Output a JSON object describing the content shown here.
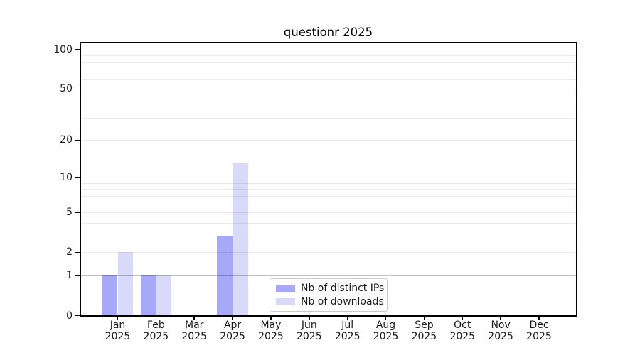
{
  "title": "questionr 2025",
  "chart_data": {
    "type": "bar",
    "title": "questionr 2025",
    "categories": [
      "Jan",
      "Feb",
      "Mar",
      "Apr",
      "May",
      "Jun",
      "Jul",
      "Aug",
      "Sep",
      "Oct",
      "Nov",
      "Dec"
    ],
    "x_year_label": "2025",
    "series": [
      {
        "name": "Nb of distinct IPs",
        "color": "#a8a8f8",
        "values": [
          1,
          1,
          0,
          3,
          0,
          0,
          0,
          0,
          0,
          0,
          0,
          0
        ]
      },
      {
        "name": "Nb of downloads",
        "color": "#d9d9fa",
        "values": [
          2,
          1,
          0,
          13,
          0,
          0,
          0,
          0,
          0,
          0,
          0,
          0
        ]
      }
    ],
    "y_axis": {
      "scale": "log1p",
      "tick_values": [
        0,
        1,
        2,
        5,
        10,
        20,
        50,
        100
      ],
      "major_gridlines": [
        1,
        10,
        100
      ],
      "minor_gridlines": [
        2,
        3,
        4,
        5,
        6,
        7,
        8,
        9,
        20,
        30,
        40,
        50,
        60,
        70,
        80,
        90
      ],
      "ylim": [
        0,
        113
      ]
    },
    "grid": true,
    "legend_position": "inside-bottom-left-of-center",
    "colors": {
      "major_grid": "#c2c2c2",
      "minor_grid": "#ebebeb",
      "axis": "#000000",
      "background": "#ffffff"
    }
  }
}
